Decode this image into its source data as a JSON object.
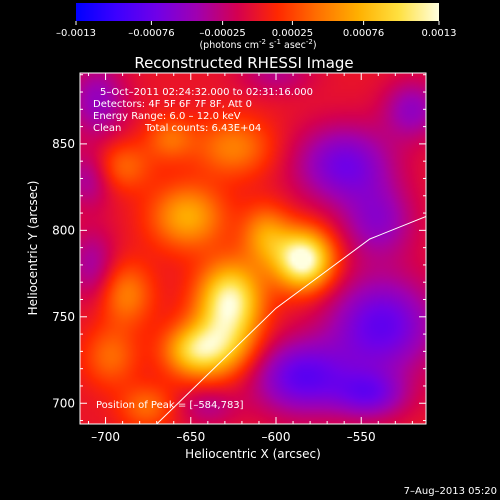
{
  "colorbar": {
    "ticks": [
      "-0.0013",
      "-0.00076",
      "-0.00025",
      "0.00025",
      "0.00076",
      "0.0013"
    ],
    "unit": {
      "main": "(photons cm",
      "sup1": "-2",
      "s_part": " s",
      "sup2": "-1",
      "asec_part": " asec",
      "sup3": "-2",
      "close": ")"
    },
    "min": -0.0013,
    "max": 0.0013,
    "colors": [
      "#0000ff",
      "#3c00ff",
      "#7000e8",
      "#a000b0",
      "#d40050",
      "#ff2800",
      "#ff7000",
      "#ffb000",
      "#ffe040",
      "#ffffe0"
    ]
  },
  "annotations": {
    "time": "5–Oct–2011 02:24:32.000 to 02:31:16.000",
    "detectors": "Detectors: 4F 5F 6F 7F 8F, Att 0",
    "energy": "Energy Range: 6.0 – 12.0 keV",
    "clean": "Clean",
    "counts": "Total counts: 6.43E+04",
    "peak": "Position of Peak = [–584,783]"
  },
  "date_stamp": "7–Aug–2013 05:20",
  "chart_data": {
    "type": "heatmap",
    "title": "Reconstructed RHESSI Image",
    "xlabel": "Heliocentric X (arcsec)",
    "ylabel": "Heliocentric Y (arcsec)",
    "xlim": [
      -715,
      -512
    ],
    "ylim": [
      688,
      891
    ],
    "xticks": [
      -700,
      -650,
      -600,
      -550
    ],
    "xtick_labels": [
      "–700",
      "–650",
      "–600",
      "–550"
    ],
    "yticks": [
      700,
      750,
      800,
      850
    ],
    "ytick_labels": [
      "700",
      "750",
      "800",
      "850"
    ],
    "peak": {
      "x": -584,
      "y": 783
    },
    "limb": [
      [
        -670,
        688
      ],
      [
        -600,
        755
      ],
      [
        -545,
        795
      ],
      [
        -512,
        808
      ]
    ],
    "blobs": [
      {
        "x": -584,
        "y": 783,
        "amp": 0.0014,
        "sx": 12,
        "sy": 12
      },
      {
        "x": -627,
        "y": 760,
        "amp": 0.0012,
        "sx": 13,
        "sy": 15
      },
      {
        "x": -606,
        "y": 797,
        "amp": 0.0006,
        "sx": 10,
        "sy": 12
      },
      {
        "x": -634,
        "y": 733,
        "amp": 0.0008,
        "sx": 15,
        "sy": 13
      },
      {
        "x": -652,
        "y": 808,
        "amp": 0.0007,
        "sx": 15,
        "sy": 13
      },
      {
        "x": -625,
        "y": 848,
        "amp": 0.0005,
        "sx": 16,
        "sy": 12
      },
      {
        "x": -662,
        "y": 853,
        "amp": 0.0004,
        "sx": 10,
        "sy": 9
      },
      {
        "x": -690,
        "y": 837,
        "amp": 0.0004,
        "sx": 12,
        "sy": 10
      },
      {
        "x": -688,
        "y": 763,
        "amp": 0.0005,
        "sx": 11,
        "sy": 13
      },
      {
        "x": -697,
        "y": 727,
        "amp": 0.0004,
        "sx": 11,
        "sy": 12
      },
      {
        "x": -676,
        "y": 698,
        "amp": 0.0004,
        "sx": 11,
        "sy": 9
      },
      {
        "x": -650,
        "y": 730,
        "amp": 0.0006,
        "sx": 12,
        "sy": 10
      },
      {
        "x": -560,
        "y": 838,
        "amp": -0.0007,
        "sx": 20,
        "sy": 16
      },
      {
        "x": -540,
        "y": 805,
        "amp": -0.0005,
        "sx": 15,
        "sy": 15
      },
      {
        "x": -538,
        "y": 745,
        "amp": -0.0008,
        "sx": 22,
        "sy": 20
      },
      {
        "x": -585,
        "y": 715,
        "amp": -0.0008,
        "sx": 20,
        "sy": 15
      },
      {
        "x": -545,
        "y": 705,
        "amp": -0.0006,
        "sx": 15,
        "sy": 10
      },
      {
        "x": -705,
        "y": 875,
        "amp": -0.0005,
        "sx": 12,
        "sy": 15
      },
      {
        "x": -710,
        "y": 830,
        "amp": -0.0004,
        "sx": 10,
        "sy": 12
      },
      {
        "x": -708,
        "y": 780,
        "amp": -0.0004,
        "sx": 10,
        "sy": 15
      },
      {
        "x": -640,
        "y": 698,
        "amp": -0.0003,
        "sx": 12,
        "sy": 8
      },
      {
        "x": -520,
        "y": 870,
        "amp": -0.0005,
        "sx": 12,
        "sy": 12
      },
      {
        "x": -600,
        "y": 890,
        "amp": -0.0003,
        "sx": 15,
        "sy": 8
      }
    ]
  }
}
